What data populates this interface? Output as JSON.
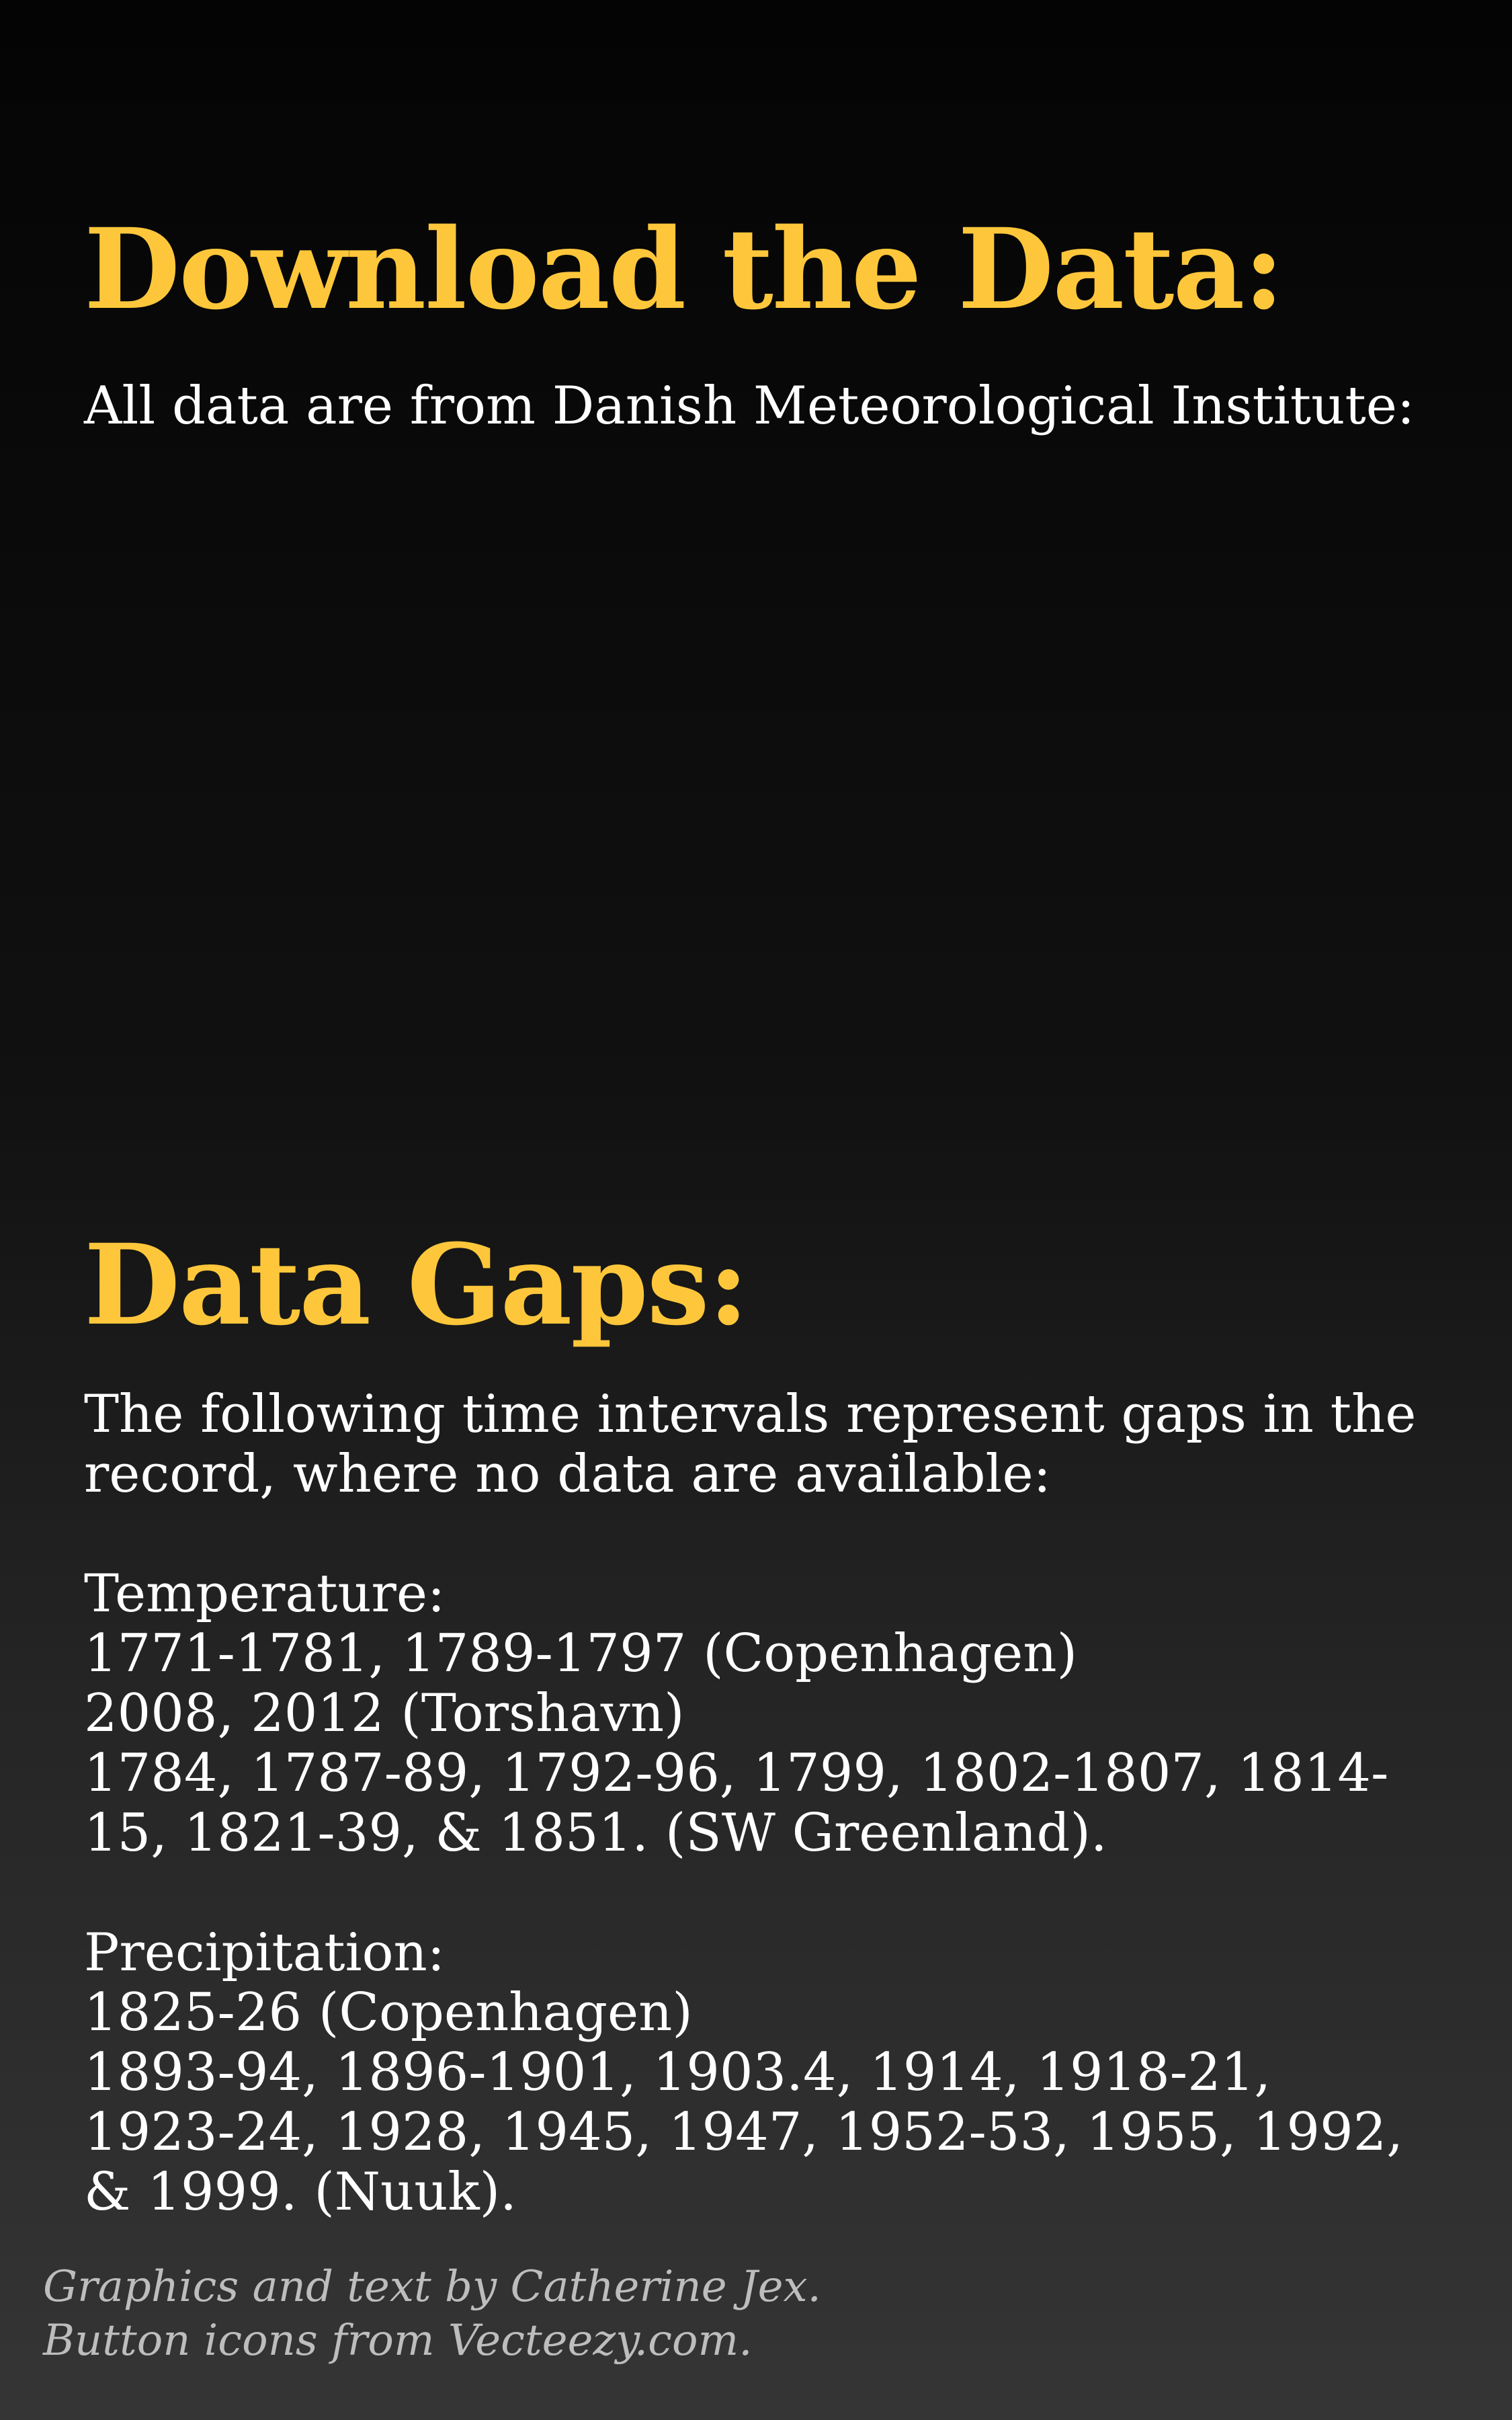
{
  "download": {
    "heading": "Download the Data:",
    "intro": "All data are from Danish Meteorological Institute:"
  },
  "gaps": {
    "heading": "Data Gaps:",
    "intro": "The following time intervals represent gaps in the record, where no data are available:",
    "temperature": {
      "title": "Temperature:",
      "lines": [
        "1771-1781, 1789-1797 (Copenhagen)",
        "2008, 2012 (Torshavn)",
        "1784, 1787-89, 1792-96, 1799, 1802-1807, 1814-15, 1821-39, & 1851. (SW Greenland)."
      ]
    },
    "precipitation": {
      "title": "Precipitation:",
      "lines": [
        "1825-26 (Copenhagen)",
        "1893-94, 1896-1901, 1903.4, 1914, 1918-21, 1923-24, 1928, 1945, 1947, 1952-53, 1955, 1992, & 1999. (Nuuk)."
      ]
    }
  },
  "credits": {
    "line1": "Graphics and text by Catherine Jex.",
    "line2": "Button icons from Vecteezy.com."
  },
  "colors": {
    "heading": "#fec73b",
    "text": "#ffffff",
    "credits": "#bdbdbd"
  }
}
